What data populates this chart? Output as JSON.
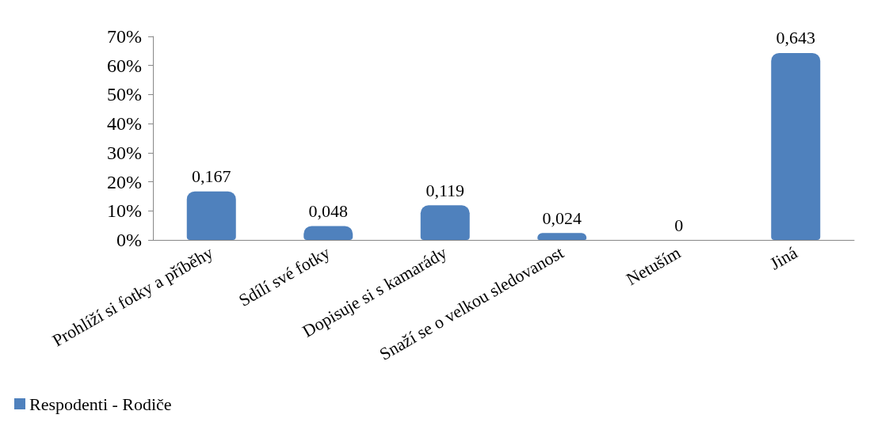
{
  "chart_data": {
    "type": "bar",
    "categories": [
      "Prohlíží si fotky a příběhy",
      "Sdílí své fotky",
      "Dopisuje si s kamarády",
      "Snaží se o velkou sledovanost",
      "Netuším",
      "Jiná"
    ],
    "series": [
      {
        "name": "Respodenti - Rodiče",
        "color": "#4f81bd",
        "values": [
          0.167,
          0.048,
          0.119,
          0.024,
          0,
          0.643
        ],
        "value_labels": [
          "0,167",
          "0,048",
          "0,119",
          "0,024",
          "0",
          "0,643"
        ]
      }
    ],
    "ylim": [
      0,
      0.7
    ],
    "yticks": [
      {
        "value": 0,
        "label": "0%"
      },
      {
        "value": 0.1,
        "label": "10%"
      },
      {
        "value": 0.2,
        "label": "20%"
      },
      {
        "value": 0.3,
        "label": "30%"
      },
      {
        "value": 0.4,
        "label": "40%"
      },
      {
        "value": 0.5,
        "label": "50%"
      },
      {
        "value": 0.6,
        "label": "60%"
      },
      {
        "value": 0.7,
        "label": "70%"
      }
    ],
    "grid": false,
    "legend": "bottom left"
  }
}
